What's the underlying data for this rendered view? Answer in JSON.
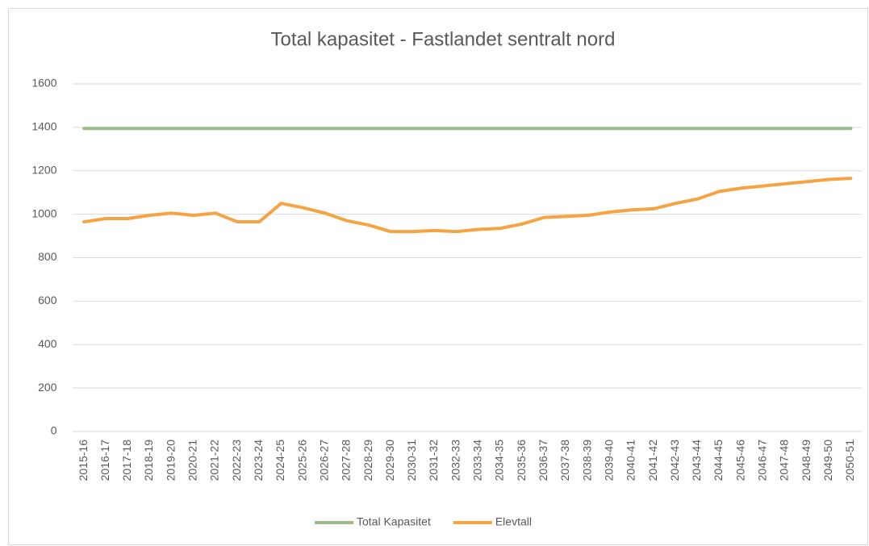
{
  "chart_data": {
    "type": "line",
    "title": "Total kapasitet - Fastlandet sentralt nord",
    "categories": [
      "2015-16",
      "2016-17",
      "2017-18",
      "2018-19",
      "2019-20",
      "2020-21",
      "2021-22",
      "2022-23",
      "2023-24",
      "2024-25",
      "2025-26",
      "2026-27",
      "2027-28",
      "2028-29",
      "2029-30",
      "2030-31",
      "2031-32",
      "2032-33",
      "2033-34",
      "2034-35",
      "2035-36",
      "2036-37",
      "2037-38",
      "2038-39",
      "2039-40",
      "2040-41",
      "2041-42",
      "2042-43",
      "2043-44",
      "2044-45",
      "2045-46",
      "2046-47",
      "2047-48",
      "2048-49",
      "2049-50",
      "2050-51"
    ],
    "series": [
      {
        "name": "Total Kapasitet",
        "color": "#9cba8c",
        "values": [
          1395,
          1395,
          1395,
          1395,
          1395,
          1395,
          1395,
          1395,
          1395,
          1395,
          1395,
          1395,
          1395,
          1395,
          1395,
          1395,
          1395,
          1395,
          1395,
          1395,
          1395,
          1395,
          1395,
          1395,
          1395,
          1395,
          1395,
          1395,
          1395,
          1395,
          1395,
          1395,
          1395,
          1395,
          1395,
          1395
        ]
      },
      {
        "name": "Elevtall",
        "color": "#f5a343",
        "values": [
          965,
          980,
          980,
          995,
          1005,
          995,
          1005,
          965,
          965,
          1050,
          1030,
          1005,
          970,
          950,
          920,
          920,
          925,
          920,
          930,
          935,
          955,
          985,
          990,
          995,
          1010,
          1020,
          1025,
          1050,
          1070,
          1105,
          1120,
          1130,
          1140,
          1150,
          1160,
          1165
        ]
      }
    ],
    "ylim": [
      0,
      1600
    ],
    "yticks": [
      0,
      200,
      400,
      600,
      800,
      1000,
      1200,
      1400,
      1600
    ],
    "grid": true,
    "legend": "bottom"
  }
}
